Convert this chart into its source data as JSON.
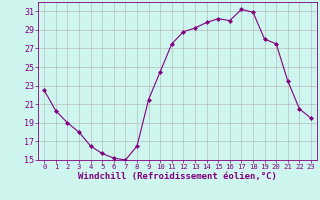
{
  "x": [
    0,
    1,
    2,
    3,
    4,
    5,
    6,
    7,
    8,
    9,
    10,
    11,
    12,
    13,
    14,
    15,
    16,
    17,
    18,
    19,
    20,
    21,
    22,
    23
  ],
  "y": [
    22.5,
    20.3,
    19.0,
    18.0,
    16.5,
    15.7,
    15.2,
    15.0,
    16.5,
    21.5,
    24.5,
    27.5,
    28.8,
    29.2,
    29.8,
    30.2,
    30.0,
    31.2,
    30.9,
    28.0,
    27.5,
    23.5,
    20.5,
    19.5
  ],
  "line_color": "#800080",
  "marker": "D",
  "marker_size": 2.0,
  "bg_color": "#cef5ee",
  "grid_color": "#b0b0b0",
  "xlabel": "Windchill (Refroidissement éolien,°C)",
  "ylim": [
    15,
    32
  ],
  "xlim": [
    -0.5,
    23.5
  ],
  "yticks": [
    15,
    17,
    19,
    21,
    23,
    25,
    27,
    29,
    31
  ],
  "xticks": [
    0,
    1,
    2,
    3,
    4,
    5,
    6,
    7,
    8,
    9,
    10,
    11,
    12,
    13,
    14,
    15,
    16,
    17,
    18,
    19,
    20,
    21,
    22,
    23
  ],
  "title_color": "#800080",
  "axis_color": "#800080",
  "xlabel_fontsize": 6.5,
  "xtick_fontsize": 5.2,
  "ytick_fontsize": 6.0
}
